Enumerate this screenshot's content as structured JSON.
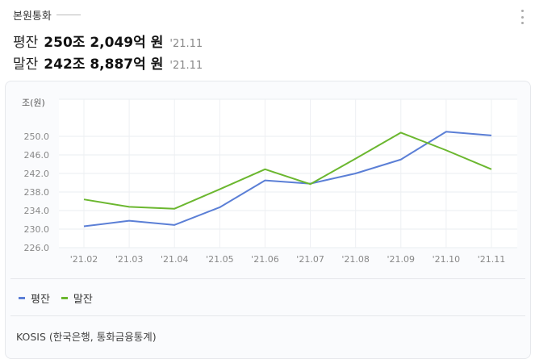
{
  "header": {
    "title": "본원통화"
  },
  "stats": [
    {
      "label": "평잔",
      "value": "250조 2,049억",
      "unit": "원",
      "date": "'21.11"
    },
    {
      "label": "말잔",
      "value": "242조 8,887억",
      "unit": "원",
      "date": "'21.11"
    }
  ],
  "colors": {
    "pyeongjan": "#5b7fd6",
    "maljan": "#6bb72f"
  },
  "chart_data": {
    "type": "line",
    "ylabel": "조(원)",
    "ylim": [
      226.0,
      250.0
    ],
    "yticks": [
      "226.0",
      "230.0",
      "234.0",
      "238.0",
      "242.0",
      "246.0",
      "250.0"
    ],
    "categories": [
      "'21.02",
      "'21.03",
      "'21.04",
      "'21.05",
      "'21.06",
      "'21.07",
      "'21.08",
      "'21.09",
      "'21.10",
      "'21.11"
    ],
    "series": [
      {
        "name": "평잔",
        "values": [
          230.6,
          231.8,
          230.9,
          234.7,
          240.5,
          239.8,
          242.0,
          245.0,
          251.0,
          250.2
        ]
      },
      {
        "name": "말잔",
        "values": [
          236.4,
          234.8,
          234.4,
          238.6,
          242.9,
          239.7,
          245.2,
          250.8,
          247.0,
          242.9
        ]
      }
    ],
    "grid": true,
    "legend_position": "bottom-left"
  },
  "legend": {
    "items": [
      "평잔",
      "말잔"
    ]
  },
  "source": "KOSIS (한국은행, 통화금융통계)"
}
